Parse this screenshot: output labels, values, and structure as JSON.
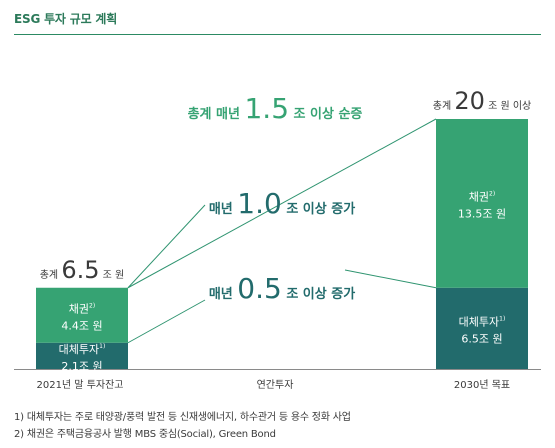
{
  "section_title": "ESG 투자 규모 계획",
  "colors": {
    "green": "#36a373",
    "teal": "#226b6c",
    "accent": "#2c8a63",
    "line": "#2f9470",
    "text": "#3a3a3a"
  },
  "footnotes": [
    "1) 대체투자는 주로 태양광/풍력 발전 등 신재생에너지, 하수관거 등 용수 정화 사업",
    "2) 채권은 주택금융공사 발행 MBS 중심(Social), Green Bond"
  ],
  "chart_data": {
    "type": "bar",
    "stacked": true,
    "unit": "조 원",
    "categories": [
      "2021년 말 투자잔고",
      "연간투자",
      "2030년 목표"
    ],
    "series": [
      {
        "name": "대체투자",
        "sup": "1)",
        "color": "#226b6c",
        "values": [
          2.1,
          null,
          6.5
        ],
        "labels": [
          "2.1조 원",
          null,
          "6.5조 원"
        ]
      },
      {
        "name": "채권",
        "sup": "2)",
        "color": "#36a373",
        "values": [
          4.4,
          null,
          13.5
        ],
        "labels": [
          "4.4조 원",
          null,
          "13.5조 원"
        ]
      }
    ],
    "totals": [
      {
        "prefix": "총계",
        "value": "6.5",
        "suffix": "조 원"
      },
      null,
      {
        "prefix": "총계",
        "value": "20",
        "suffix": "조 원 이상"
      }
    ],
    "annotations": [
      {
        "prefix": "총계 매년",
        "value": "1.5",
        "suffix": "조 이상 순증",
        "color": "#36a373"
      },
      {
        "prefix": "매년",
        "value": "1.0",
        "suffix": "조 이상 증가",
        "color": "#226b6c"
      },
      {
        "prefix": "매년",
        "value": "0.5",
        "suffix": "조 이상 증가",
        "color": "#226b6c"
      }
    ]
  }
}
